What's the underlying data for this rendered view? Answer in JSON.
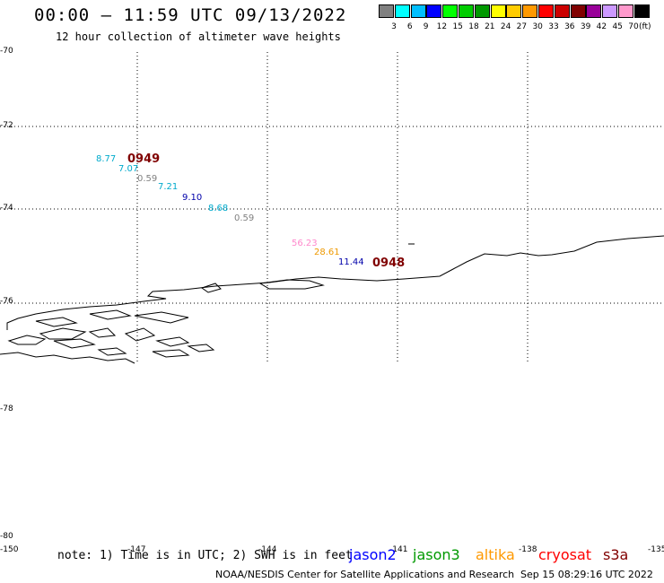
{
  "title": "00:00 – 11:59 UTC 09/13/2022",
  "subtitle": "12 hour collection of altimeter wave heights",
  "colorbar": {
    "colors": [
      "#808080",
      "#00ffff",
      "#00bfff",
      "#0000ff",
      "#00ff00",
      "#00cc00",
      "#009900",
      "#ffff00",
      "#ffcc00",
      "#ff9900",
      "#ff0000",
      "#cc0000",
      "#800000",
      "#990099",
      "#cc99ff",
      "#ff99cc",
      "#000000"
    ],
    "labels": [
      "3",
      "6",
      "9",
      "12",
      "15",
      "18",
      "21",
      "24",
      "27",
      "30",
      "33",
      "36",
      "39",
      "42",
      "45",
      "70"
    ],
    "unit": "(ft)"
  },
  "axes": {
    "lat_labels": [
      "-70",
      "-72",
      "-74",
      "-76",
      "-78",
      "-80"
    ],
    "lon_labels": [
      "-150",
      "-147",
      "-144",
      "-141",
      "-138",
      "-135"
    ]
  },
  "wave_labels": [
    {
      "text": "8.77",
      "color": "#00aacc"
    },
    {
      "text": "7.07",
      "color": "#00aacc"
    },
    {
      "text": "0.59",
      "color": "#808080"
    },
    {
      "text": "7.21",
      "color": "#00aacc"
    },
    {
      "text": "9.10",
      "color": "#0000aa"
    },
    {
      "text": "8.68",
      "color": "#00aacc"
    },
    {
      "text": "0.59",
      "color": "#808080"
    },
    {
      "text": "56.23",
      "color": "#ff88cc"
    },
    {
      "text": "28.61",
      "color": "#ee9900"
    },
    {
      "text": "11.44",
      "color": "#0000aa"
    }
  ],
  "pass_labels": [
    "0949",
    "0948"
  ],
  "note": "note: 1) Time is in UTC; 2) SWH is in feet",
  "satellites": [
    {
      "name": "jason2",
      "color": "#0000ff"
    },
    {
      "name": "jason3",
      "color": "#009900"
    },
    {
      "name": "altika",
      "color": "#ff9900"
    },
    {
      "name": "cryosat",
      "color": "#ff0000"
    },
    {
      "name": "s3a",
      "color": "#800000"
    }
  ],
  "credit": "NOAA/NESDIS Center for Satellite Applications and Research",
  "timestamp": "Sep 15 08:29:16 UTC 2022"
}
